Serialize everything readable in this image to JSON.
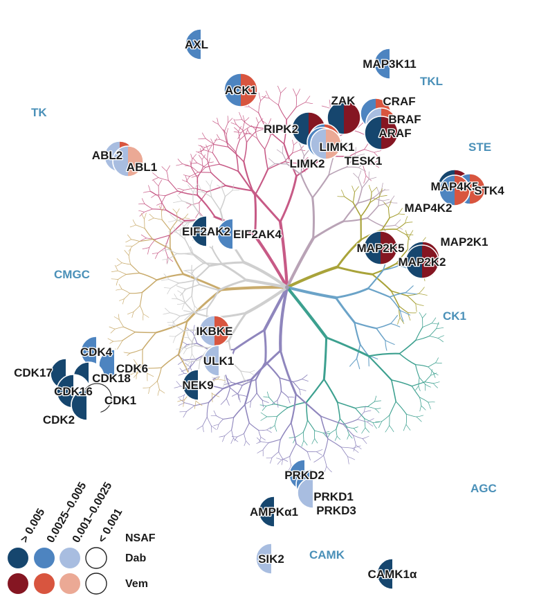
{
  "colors": {
    "tk": "#c75a86",
    "tkl": "#b9a3b6",
    "ste": "#a9a33a",
    "ck1": "#6ba3c8",
    "agc": "#3ca08f",
    "camk": "#8f86bd",
    "cmgc": "#c9ab6c",
    "other": "#cfcfcf",
    "center": "#a39cb0",
    "group_label": "#4a90b8",
    "dab": [
      "#16466e",
      "#4d84c0",
      "#a8bde0",
      "#ffffff"
    ],
    "vem": [
      "#851622",
      "#d8553f",
      "#eba995",
      "#ffffff"
    ]
  },
  "groups": {
    "tk": "TK",
    "tkl": "TKL",
    "ste": "STE",
    "ck1": "CK1",
    "agc": "AGC",
    "camk": "CAMK",
    "cmgc": "CMGC"
  },
  "kinases": [
    {
      "name": "AXL",
      "dab": 1,
      "vem": 3
    },
    {
      "name": "ACK1",
      "dab": 1,
      "vem": 1
    },
    {
      "name": "MAP3K11",
      "dab": 1,
      "vem": 3
    },
    {
      "name": "ZAK",
      "dab": 0,
      "vem": 0
    },
    {
      "name": "CRAF",
      "dab": 1,
      "vem": 1
    },
    {
      "name": "BRAF",
      "dab": 2,
      "vem": 1
    },
    {
      "name": "ARAF",
      "dab": 0,
      "vem": 0
    },
    {
      "name": "RIPK2",
      "dab": 0,
      "vem": 0
    },
    {
      "name": "LIMK1",
      "dab": 1,
      "vem": 1
    },
    {
      "name": "LIMK2",
      "dab": 1,
      "vem": 1
    },
    {
      "name": "TESK1",
      "dab": 2,
      "vem": 2
    },
    {
      "name": "ABL2",
      "dab": 2,
      "vem": 1
    },
    {
      "name": "ABL1",
      "dab": 2,
      "vem": 2
    },
    {
      "name": "MAP4K5",
      "dab": 0,
      "vem": 0
    },
    {
      "name": "STK4",
      "dab": 1,
      "vem": 1
    },
    {
      "name": "MAP4K2",
      "dab": 1,
      "vem": 1
    },
    {
      "name": "EIF2AK2",
      "dab": 0,
      "vem": 3
    },
    {
      "name": "EIF2AK4",
      "dab": 1,
      "vem": 3
    },
    {
      "name": "MAP2K5",
      "dab": 0,
      "vem": 0
    },
    {
      "name": "MAP2K1",
      "dab": 0,
      "vem": 0
    },
    {
      "name": "MAP2K2",
      "dab": 0,
      "vem": 0
    },
    {
      "name": "IKBKE",
      "dab": 2,
      "vem": 1
    },
    {
      "name": "ULK1",
      "dab": 2,
      "vem": 3
    },
    {
      "name": "NEK9",
      "dab": 0,
      "vem": 3
    },
    {
      "name": "CDK4",
      "dab": 1,
      "vem": 3
    },
    {
      "name": "CDK6",
      "dab": 1,
      "vem": 3
    },
    {
      "name": "CDK17",
      "dab": 0,
      "vem": 3
    },
    {
      "name": "CDK18",
      "dab": 0,
      "vem": 3
    },
    {
      "name": "CDK16",
      "dab": 0,
      "vem": 3
    },
    {
      "name": "CDK1",
      "dab": 3,
      "vem": 3
    },
    {
      "name": "CDK2",
      "dab": 0,
      "vem": 3
    },
    {
      "name": "PRKD2",
      "dab": 1,
      "vem": 3
    },
    {
      "name": "PRKD1",
      "dab": 1,
      "vem": 3
    },
    {
      "name": "PRKD3",
      "dab": 2,
      "vem": 3
    },
    {
      "name": "AMPKα1",
      "dab": 0,
      "vem": 3
    },
    {
      "name": "SIK2",
      "dab": 2,
      "vem": 3
    },
    {
      "name": "CAMK1α",
      "dab": 0,
      "vem": 3
    }
  ],
  "legend": {
    "bins": [
      "> 0.005",
      "0.0025–0.005",
      "0.001–0.0025",
      "< 0.001"
    ],
    "metric_label": "NSAF",
    "dab_label": "Dab",
    "vem_label": "Vem"
  }
}
